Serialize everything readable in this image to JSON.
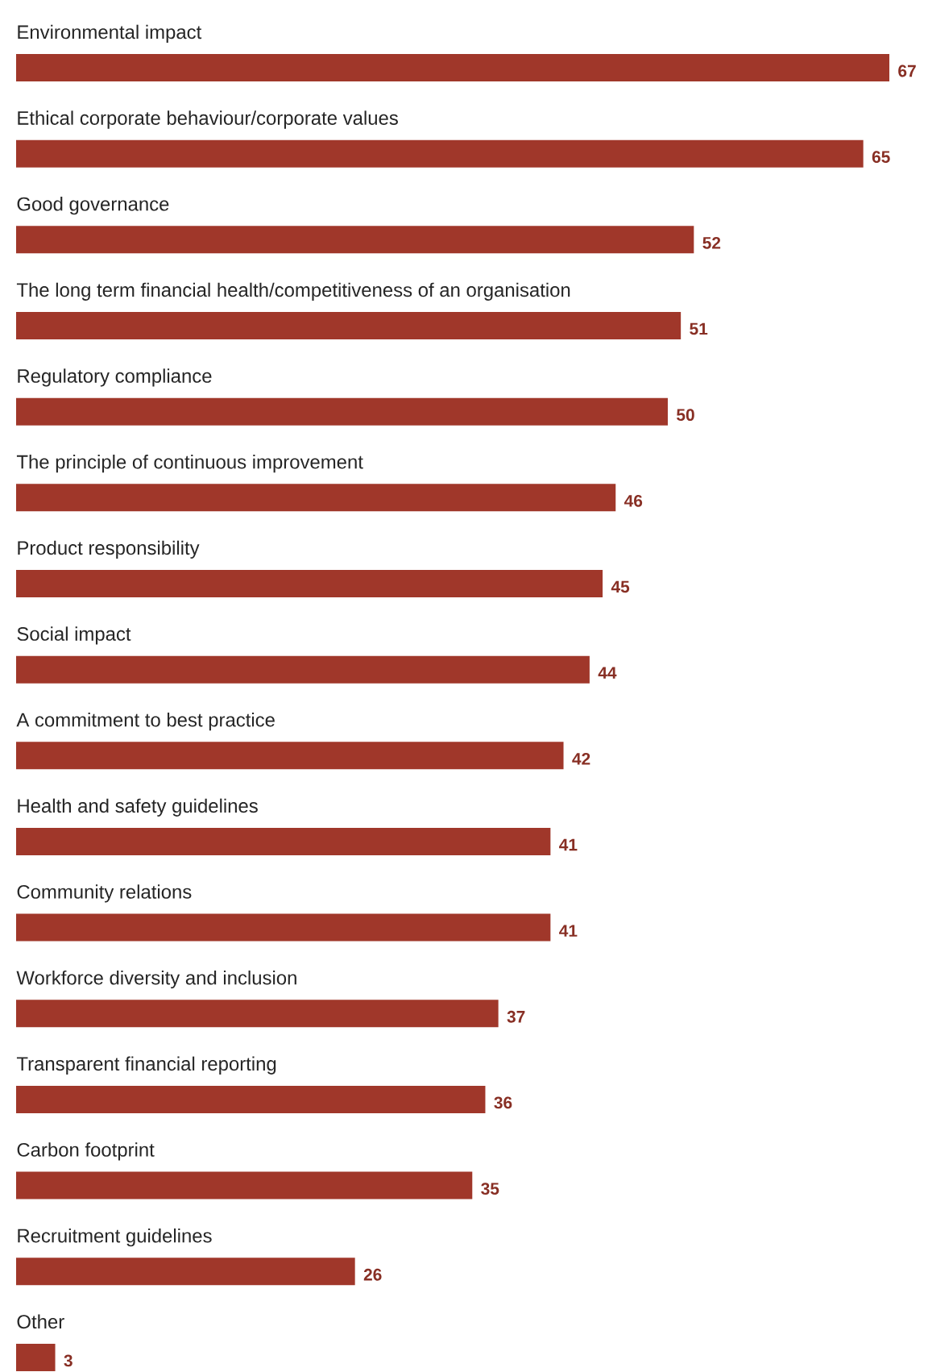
{
  "chart_data": {
    "type": "bar",
    "orientation": "horizontal",
    "data_labels": true,
    "color": "#a0372a",
    "categories": [
      "Environmental impact",
      "Ethical corporate behaviour/corporate values",
      "Good governance",
      "The long term financial health/competitiveness of an organisation",
      "Regulatory compliance",
      "The principle of continuous improvement",
      "Product responsibility",
      "Social impact",
      "A commitment to best practice",
      "Health and safety guidelines",
      "Community relations",
      "Workforce diversity and inclusion",
      "Transparent financial reporting",
      "Carbon footprint",
      "Recruitment guidelines",
      "Other"
    ],
    "values": [
      67,
      65,
      52,
      51,
      50,
      46,
      45,
      44,
      42,
      41,
      41,
      37,
      36,
      35,
      26,
      3
    ]
  }
}
